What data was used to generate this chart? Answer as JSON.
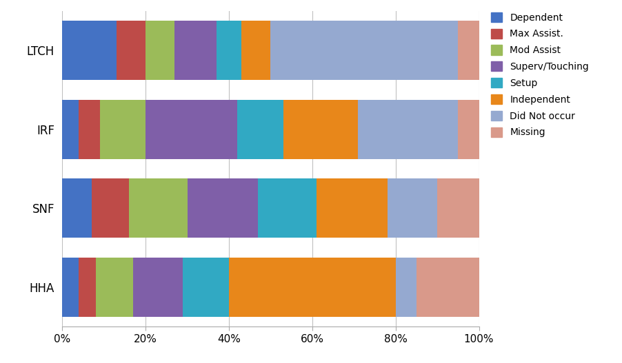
{
  "categories": [
    "LTCH",
    "IRF",
    "SNF",
    "HHA"
  ],
  "segments": [
    "Dependent",
    "Max Assist.",
    "Mod Assist",
    "Superv/Touching",
    "Setup",
    "Independent",
    "Did Not occur",
    "Missing"
  ],
  "colors": [
    "#4472C4",
    "#BE4B48",
    "#9BBB59",
    "#7F5FA8",
    "#31A9C3",
    "#E8871A",
    "#95A9D0",
    "#D9998A"
  ],
  "values": {
    "LTCH": [
      13,
      7,
      7,
      10,
      6,
      7,
      45,
      5
    ],
    "IRF": [
      4,
      5,
      11,
      22,
      11,
      18,
      24,
      5
    ],
    "SNF": [
      7,
      9,
      14,
      17,
      14,
      17,
      12,
      10
    ],
    "HHA": [
      4,
      4,
      9,
      12,
      11,
      40,
      5,
      15
    ]
  },
  "xlim": [
    0,
    100
  ],
  "xtick_labels": [
    "0%",
    "20%",
    "40%",
    "60%",
    "80%",
    "100%"
  ],
  "xtick_values": [
    0,
    20,
    40,
    60,
    80,
    100
  ],
  "background_color": "#FFFFFF",
  "bar_height": 0.75,
  "legend_fontsize": 10,
  "tick_fontsize": 11,
  "ytick_fontsize": 12,
  "grid_color": "#C0C0C0",
  "grid_linewidth": 0.8
}
